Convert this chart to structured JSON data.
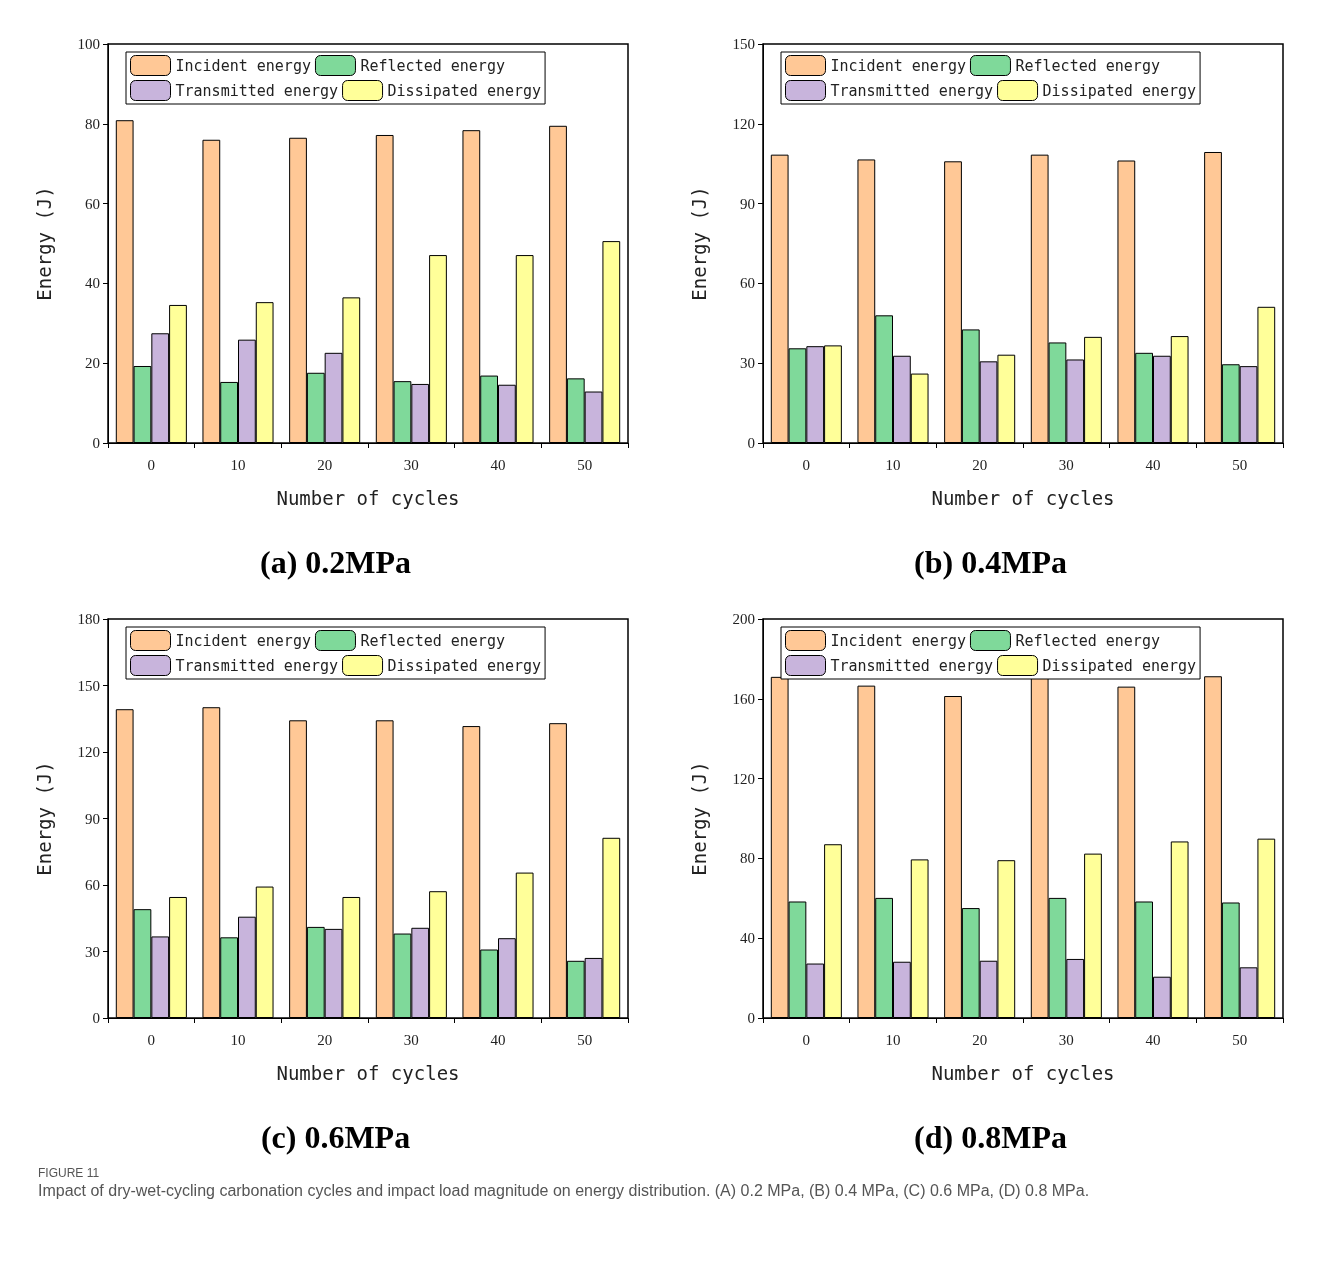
{
  "chart_data": [
    {
      "type": "bar",
      "title": "(a) 0.2MPa",
      "xlabel": "Number of cycles",
      "ylabel": "Energy (J)",
      "categories": [
        "0",
        "10",
        "20",
        "30",
        "40",
        "50"
      ],
      "ylim": [
        0,
        100
      ],
      "yticks": [
        0,
        20,
        40,
        60,
        80,
        100
      ],
      "grid": false,
      "legend": "top",
      "series": [
        {
          "name": "Incident energy",
          "color": "#ffc896",
          "values": [
            80.9,
            76,
            76.5,
            77.2,
            78.4,
            79.5
          ]
        },
        {
          "name": "Reflected energy",
          "color": "#7fd99a",
          "values": [
            19.3,
            15.3,
            17.6,
            15.5,
            16.9,
            16.2
          ]
        },
        {
          "name": "Transmitted energy",
          "color": "#c8b4dc",
          "values": [
            27.5,
            25.9,
            22.6,
            14.8,
            14.6,
            12.9
          ]
        },
        {
          "name": "Dissipated energy",
          "color": "#ffff99",
          "values": [
            34.6,
            35.3,
            36.5,
            47.1,
            47.1,
            50.6
          ]
        }
      ]
    },
    {
      "type": "bar",
      "title": "(b) 0.4MPa",
      "xlabel": "Number of cycles",
      "ylabel": "Energy (J)",
      "categories": [
        "0",
        "10",
        "20",
        "30",
        "40",
        "50"
      ],
      "ylim": [
        0,
        150
      ],
      "yticks": [
        0,
        30,
        60,
        90,
        120,
        150
      ],
      "grid": false,
      "legend": "top",
      "series": [
        {
          "name": "Incident energy",
          "color": "#ffc896",
          "values": [
            108.4,
            106.6,
            105.9,
            108.4,
            106.2,
            109.4
          ]
        },
        {
          "name": "Reflected energy",
          "color": "#7fd99a",
          "values": [
            35.6,
            48,
            42.7,
            37.8,
            33.9,
            29.6
          ]
        },
        {
          "name": "Transmitted energy",
          "color": "#c8b4dc",
          "values": [
            36.4,
            32.8,
            30.7,
            31.4,
            32.8,
            28.9
          ]
        },
        {
          "name": "Dissipated energy",
          "color": "#ffff99",
          "values": [
            36.7,
            26.1,
            33.2,
            39.9,
            40.2,
            51.2
          ]
        }
      ]
    },
    {
      "type": "bar",
      "title": "(c) 0.6MPa",
      "xlabel": "Number of cycles",
      "ylabel": "Energy (J)",
      "categories": [
        "0",
        "10",
        "20",
        "30",
        "40",
        "50"
      ],
      "ylim": [
        0,
        180
      ],
      "yticks": [
        0,
        30,
        60,
        90,
        120,
        150,
        180
      ],
      "grid": false,
      "legend": "top",
      "series": [
        {
          "name": "Incident energy",
          "color": "#ffc896",
          "values": [
            139.3,
            140.2,
            134.3,
            134.3,
            131.7,
            133
          ]
        },
        {
          "name": "Reflected energy",
          "color": "#7fd99a",
          "values": [
            49.1,
            36.4,
            41.1,
            38.1,
            30.9,
            25.8
          ]
        },
        {
          "name": "Transmitted energy",
          "color": "#c8b4dc",
          "values": [
            36.8,
            45.7,
            40.2,
            40.7,
            36,
            27.1
          ]
        },
        {
          "name": "Dissipated energy",
          "color": "#ffff99",
          "values": [
            54.6,
            59.3,
            54.6,
            57.2,
            65.6,
            81.3
          ]
        }
      ]
    },
    {
      "type": "bar",
      "title": "(d) 0.8MPa",
      "xlabel": "Number of cycles",
      "ylabel": "Energy (J)",
      "categories": [
        "0",
        "10",
        "20",
        "30",
        "40",
        "50"
      ],
      "ylim": [
        0,
        200
      ],
      "yticks": [
        0,
        40,
        80,
        120,
        160,
        200
      ],
      "grid": false,
      "legend": "top",
      "series": [
        {
          "name": "Incident energy",
          "color": "#ffc896",
          "values": [
            171,
            166.6,
            161.4,
            171.3,
            166.1,
            171.3
          ]
        },
        {
          "name": "Reflected energy",
          "color": "#7fd99a",
          "values": [
            58.4,
            60.2,
            55.1,
            60.2,
            58.4,
            57.9
          ]
        },
        {
          "name": "Transmitted energy",
          "color": "#c8b4dc",
          "values": [
            27.3,
            28.2,
            28.7,
            29.6,
            20.7,
            25.4
          ]
        },
        {
          "name": "Dissipated energy",
          "color": "#ffff99",
          "values": [
            87.1,
            79.5,
            79.1,
            82.4,
            88.5,
            89.9
          ]
        }
      ],
      "annotations": [
        "FIGURE 11",
        "Impact of dry-wet-cycling carbonation cycles and impact load magnitude on energy distribution. (A) 0.2 MPa, (B) 0.4 MPa, (C) 0.6 MPa, (D) 0.8 MPa."
      ]
    }
  ]
}
